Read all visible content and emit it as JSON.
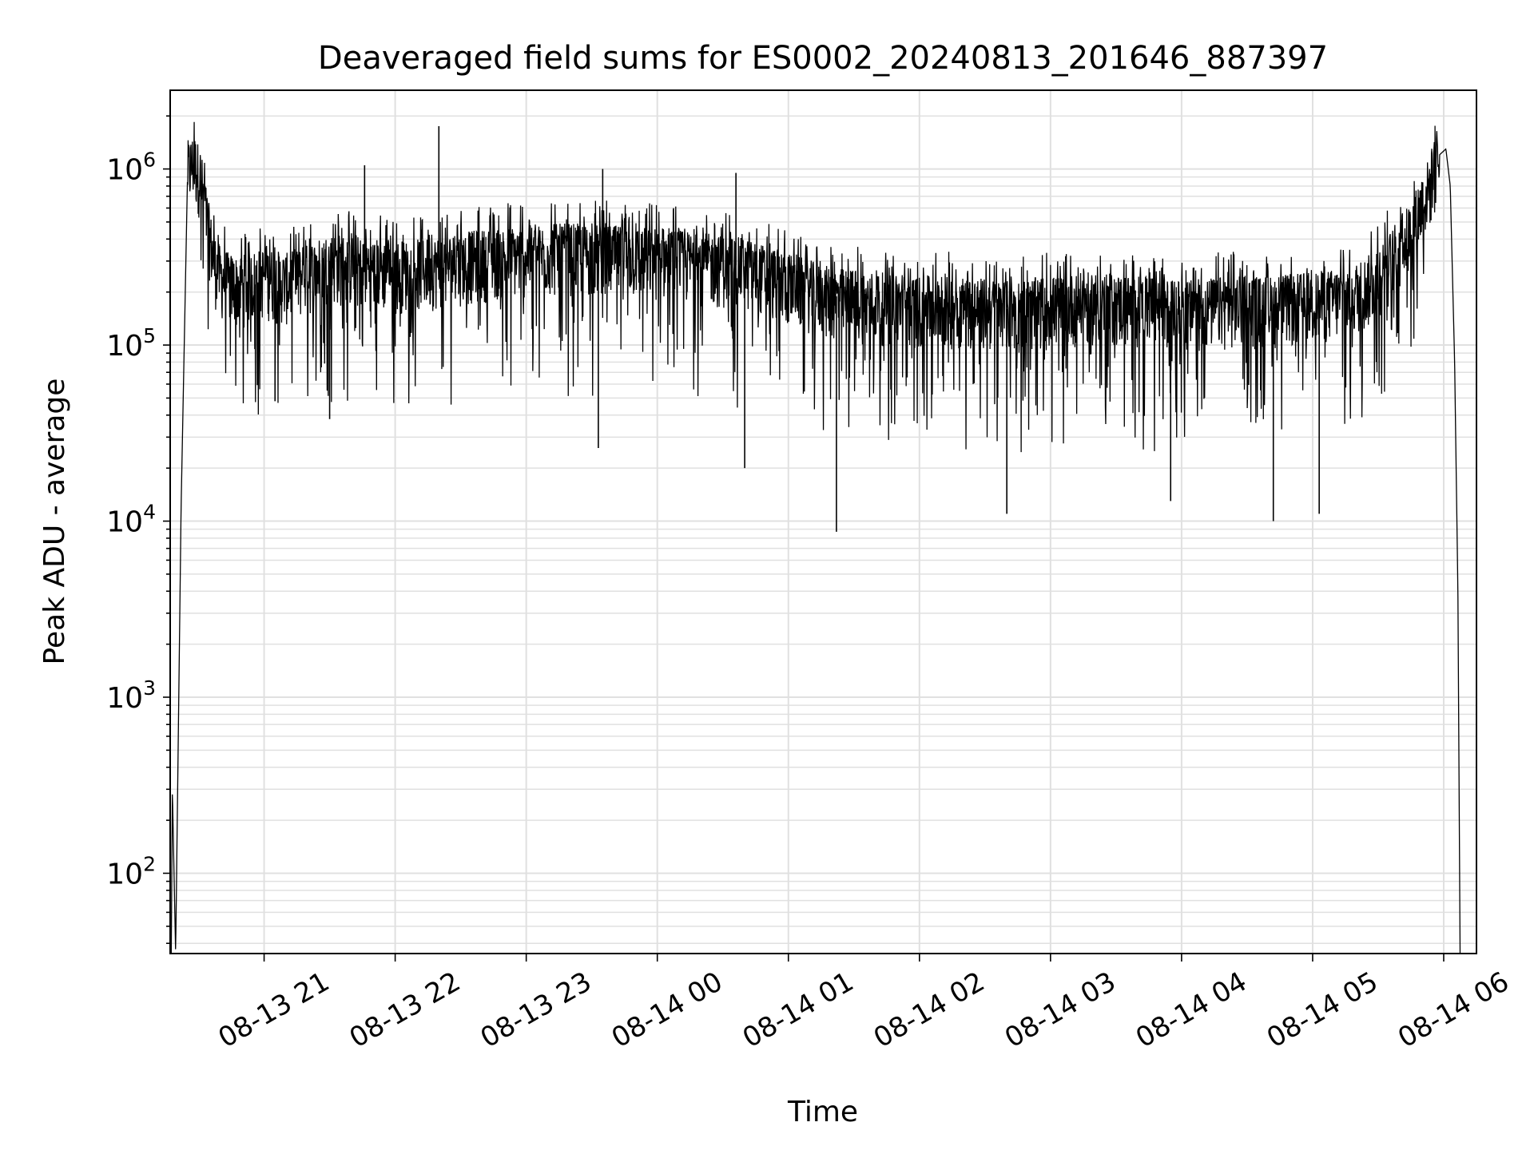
{
  "chart_data": {
    "type": "line",
    "title": "Deaveraged field sums for ES0002_20240813_201646_887397",
    "xlabel": "Time",
    "ylabel": "Peak ADU - average",
    "x_scale": "time",
    "y_scale": "log",
    "xlim": [
      "2024-08-13 20:17",
      "2024-08-14 06:15"
    ],
    "ylim": [
      35,
      2800000
    ],
    "grid": true,
    "x_tick_labels": [
      "08-13 21",
      "08-13 22",
      "08-13 23",
      "08-14 00",
      "08-14 01",
      "08-14 02",
      "08-14 03",
      "08-14 04",
      "08-14 05",
      "08-14 06"
    ],
    "y_tick_labels": [
      {
        "base": "10",
        "exp": "2"
      },
      {
        "base": "10",
        "exp": "3"
      },
      {
        "base": "10",
        "exp": "4"
      },
      {
        "base": "10",
        "exp": "5"
      },
      {
        "base": "10",
        "exp": "6"
      }
    ],
    "series": [
      {
        "color": "#000000",
        "x": [
          "2024-08-13 20:17:00",
          "2024-08-13 20:17:30",
          "2024-08-13 20:18:00",
          "2024-08-13 20:19:30",
          "2024-08-13 20:22:00",
          "2024-08-13 20:25:00",
          "2024-08-13 20:28:00",
          "2024-08-13 20:31:00",
          "2024-08-13 20:34:00",
          "2024-08-13 20:37:00",
          "2024-08-13 20:40:00",
          "2024-08-13 20:44:00",
          "2024-08-13 20:48:00",
          "2024-08-13 20:52:00",
          "2024-08-13 20:56:00",
          "2024-08-13 21:00:00",
          "2024-08-13 21:05:00",
          "2024-08-13 21:10:00",
          "2024-08-13 21:15:00",
          "2024-08-13 21:20:00",
          "2024-08-13 21:25:00",
          "2024-08-13 21:30:00",
          "2024-08-13 21:40:00",
          "2024-08-13 21:50:00",
          "2024-08-13 22:00:00",
          "2024-08-13 22:15:00",
          "2024-08-13 22:30:00",
          "2024-08-13 22:45:00",
          "2024-08-13 23:00:00",
          "2024-08-13 23:20:00",
          "2024-08-13 23:40:00",
          "2024-08-14 00:00:00",
          "2024-08-14 00:20:00",
          "2024-08-14 00:40:00",
          "2024-08-14 01:00:00",
          "2024-08-14 01:20:00",
          "2024-08-14 01:40:00",
          "2024-08-14 02:00:00",
          "2024-08-14 02:20:00",
          "2024-08-14 02:40:00",
          "2024-08-14 03:00:00",
          "2024-08-14 03:20:00",
          "2024-08-14 03:40:00",
          "2024-08-14 04:00:00",
          "2024-08-14 04:20:00",
          "2024-08-14 04:40:00",
          "2024-08-14 05:00:00",
          "2024-08-14 05:15:00",
          "2024-08-14 05:25:00",
          "2024-08-14 05:35:00",
          "2024-08-14 05:45:00",
          "2024-08-14 05:50:00",
          "2024-08-14 05:55:00",
          "2024-08-14 05:58:00",
          "2024-08-14 06:01:00",
          "2024-08-14 06:03:00",
          "2024-08-14 06:05:00",
          "2024-08-14 06:06:30",
          "2024-08-14 06:07:30"
        ],
        "y": [
          35,
          35,
          300,
          35,
          12000,
          1000000,
          1100000,
          900000,
          500000,
          300000,
          250000,
          230000,
          220000,
          230000,
          240000,
          250000,
          240000,
          230000,
          240000,
          260000,
          280000,
          300000,
          290000,
          280000,
          270000,
          280000,
          300000,
          320000,
          330000,
          340000,
          330000,
          320000,
          300000,
          280000,
          230000,
          190000,
          180000,
          170000,
          170000,
          160000,
          170000,
          180000,
          170000,
          160000,
          170000,
          170000,
          180000,
          190000,
          220000,
          300000,
          450000,
          650000,
          900000,
          1200000,
          1300000,
          800000,
          80000,
          4000,
          35
        ],
        "spikes": [
          {
            "x": "2024-08-13 21:46:00",
            "y": 1050000
          },
          {
            "x": "2024-08-13 22:20:00",
            "y": 1750000
          },
          {
            "x": "2024-08-13 23:35:00",
            "y": 1000000
          },
          {
            "x": "2024-08-14 00:36:00",
            "y": 950000
          },
          {
            "x": "2024-08-13 21:05:00",
            "y": 48000
          },
          {
            "x": "2024-08-13 21:30:00",
            "y": 38000
          },
          {
            "x": "2024-08-13 23:33:00",
            "y": 26000
          },
          {
            "x": "2024-08-14 00:40:00",
            "y": 20000
          },
          {
            "x": "2024-08-14 01:22:00",
            "y": 8700
          },
          {
            "x": "2024-08-14 02:40:00",
            "y": 11000
          },
          {
            "x": "2024-08-14 03:55:00",
            "y": 13000
          },
          {
            "x": "2024-08-14 04:42:00",
            "y": 10000
          },
          {
            "x": "2024-08-14 05:03:00",
            "y": 11000
          }
        ]
      }
    ]
  }
}
